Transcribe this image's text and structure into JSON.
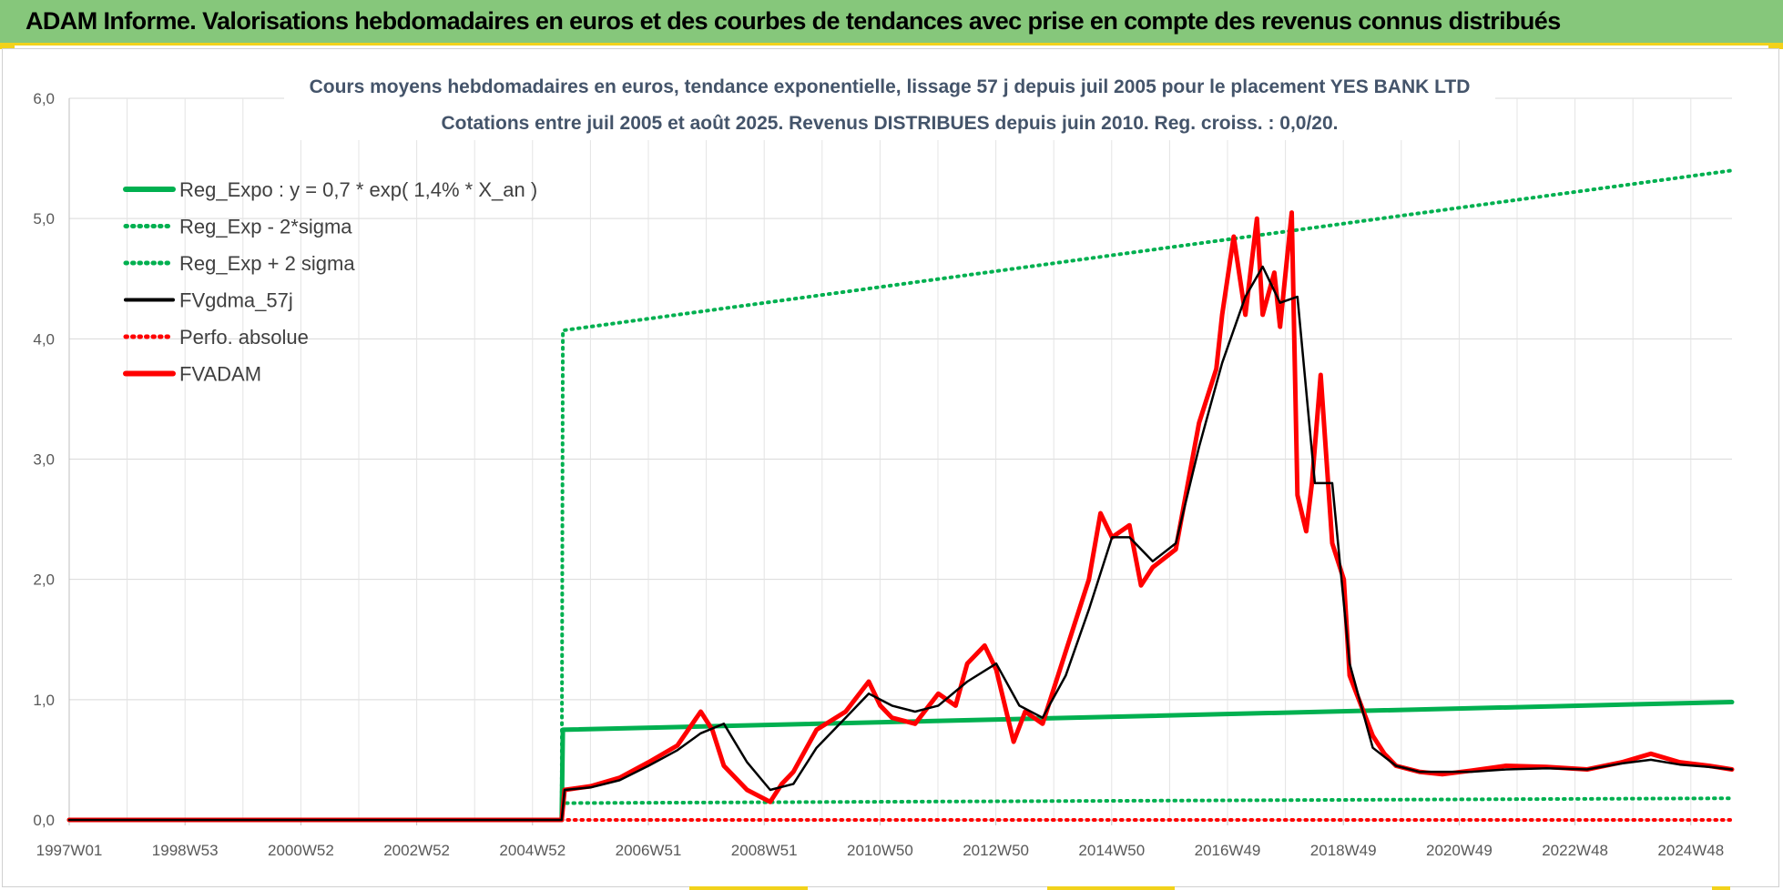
{
  "banner": {
    "title": "ADAM Informe. Valorisations hebdomadaires en euros et des courbes de tendances avec prise en compte des revenus connus distribués"
  },
  "colors": {
    "banner_bg": "#86c77b",
    "accent_yellow": "#f2d21b",
    "trend_green": "#00b050",
    "smoothed_black": "#000000",
    "perf_red": "#ff0000",
    "title_text": "#44546a"
  },
  "chart_data": {
    "type": "line",
    "title": "Cours moyens hebdomadaires en euros, tendance exponentielle, lissage 57 j depuis juil 2005 pour le placement YES BANK LTD",
    "subtitle": "Cotations entre juil 2005 et août 2025. Revenus DISTRIBUES depuis juin 2010. Reg. croiss. : 0,0/20.",
    "xlabel": "",
    "ylabel": "",
    "x_ticks": [
      "1997W01",
      "1998W53",
      "2000W52",
      "2002W52",
      "2004W52",
      "2006W51",
      "2008W51",
      "2010W50",
      "2012W50",
      "2014W50",
      "2016W49",
      "2018W49",
      "2020W49",
      "2022W48",
      "2024W48"
    ],
    "x_range": [
      1997.0,
      2025.7
    ],
    "ylim": [
      0,
      6
    ],
    "y_ticks": [
      "0,0",
      "1,0",
      "2,0",
      "3,0",
      "4,0",
      "5,0",
      "6,0"
    ],
    "grid": true,
    "legend_position": "top-left",
    "series": [
      {
        "name": "Reg_Expo : y = 0,7 * exp( 1,4% *  X_an )",
        "style": "solid-thick",
        "color": "#00b050",
        "x": [
          1997.0,
          2005.5,
          2005.52,
          2025.7
        ],
        "y": [
          0.0,
          0.0,
          0.75,
          0.98
        ]
      },
      {
        "name": "Reg_Exp - 2*sigma",
        "style": "dotted",
        "color": "#00b050",
        "x": [
          2005.5,
          2005.52,
          2025.7
        ],
        "y": [
          0.0,
          0.14,
          0.18
        ]
      },
      {
        "name": "Reg_Exp + 2 sigma",
        "style": "dotted",
        "color": "#00b050",
        "x": [
          2005.5,
          2005.52,
          2025.7
        ],
        "y": [
          0.0,
          4.07,
          5.4
        ]
      },
      {
        "name": "FVgdma_57j",
        "style": "solid-thin",
        "color": "#000000",
        "x": [
          1997.0,
          2005.5,
          2005.55,
          2006.0,
          2006.5,
          2007.0,
          2007.5,
          2007.9,
          2008.3,
          2008.7,
          2009.1,
          2009.5,
          2009.9,
          2010.4,
          2010.8,
          2011.2,
          2011.6,
          2012.0,
          2012.5,
          2013.0,
          2013.4,
          2013.8,
          2014.2,
          2014.6,
          2015.0,
          2015.3,
          2015.7,
          2016.1,
          2016.5,
          2016.9,
          2017.3,
          2017.6,
          2017.9,
          2018.2,
          2018.5,
          2018.8,
          2019.1,
          2019.5,
          2019.9,
          2020.3,
          2020.7,
          2021.2,
          2021.8,
          2022.5,
          2023.2,
          2023.8,
          2024.3,
          2024.8,
          2025.3,
          2025.7
        ],
        "y": [
          0.0,
          0.0,
          0.25,
          0.27,
          0.33,
          0.45,
          0.58,
          0.72,
          0.8,
          0.48,
          0.25,
          0.3,
          0.6,
          0.85,
          1.05,
          0.95,
          0.9,
          0.95,
          1.15,
          1.3,
          0.95,
          0.85,
          1.2,
          1.75,
          2.35,
          2.35,
          2.15,
          2.3,
          3.1,
          3.8,
          4.35,
          4.6,
          4.3,
          4.35,
          2.8,
          2.8,
          1.3,
          0.6,
          0.45,
          0.4,
          0.4,
          0.4,
          0.42,
          0.43,
          0.42,
          0.47,
          0.5,
          0.46,
          0.44,
          0.42
        ]
      },
      {
        "name": "Perfo. absolue",
        "style": "dotted",
        "color": "#ff0000",
        "x": [
          1997.0,
          2025.7
        ],
        "y": [
          0.0,
          0.0
        ]
      },
      {
        "name": "FVADAM",
        "style": "solid-thick",
        "color": "#ff0000",
        "x": [
          1997.0,
          2005.5,
          2005.55,
          2006.0,
          2006.5,
          2007.0,
          2007.5,
          2007.9,
          2008.1,
          2008.3,
          2008.7,
          2009.1,
          2009.3,
          2009.5,
          2009.9,
          2010.4,
          2010.8,
          2011.0,
          2011.2,
          2011.6,
          2012.0,
          2012.3,
          2012.5,
          2012.8,
          2013.0,
          2013.3,
          2013.5,
          2013.8,
          2014.2,
          2014.6,
          2014.8,
          2015.0,
          2015.3,
          2015.5,
          2015.7,
          2016.1,
          2016.5,
          2016.8,
          2016.9,
          2017.1,
          2017.3,
          2017.5,
          2017.6,
          2017.8,
          2017.9,
          2018.1,
          2018.2,
          2018.35,
          2018.45,
          2018.6,
          2018.8,
          2019.0,
          2019.1,
          2019.3,
          2019.5,
          2019.7,
          2019.9,
          2020.3,
          2020.7,
          2021.2,
          2021.8,
          2022.5,
          2023.2,
          2023.8,
          2024.3,
          2024.8,
          2025.3,
          2025.7
        ],
        "y": [
          0.0,
          0.0,
          0.25,
          0.28,
          0.35,
          0.48,
          0.62,
          0.9,
          0.75,
          0.45,
          0.25,
          0.15,
          0.3,
          0.4,
          0.75,
          0.9,
          1.15,
          0.95,
          0.85,
          0.8,
          1.05,
          0.95,
          1.3,
          1.45,
          1.25,
          0.65,
          0.9,
          0.8,
          1.4,
          2.0,
          2.55,
          2.35,
          2.45,
          1.95,
          2.1,
          2.25,
          3.3,
          3.75,
          4.2,
          4.85,
          4.2,
          5.0,
          4.2,
          4.55,
          4.1,
          5.05,
          2.7,
          2.4,
          2.8,
          3.7,
          2.3,
          2.0,
          1.2,
          0.95,
          0.7,
          0.55,
          0.45,
          0.4,
          0.38,
          0.41,
          0.45,
          0.44,
          0.42,
          0.48,
          0.55,
          0.48,
          0.45,
          0.42
        ]
      }
    ]
  }
}
